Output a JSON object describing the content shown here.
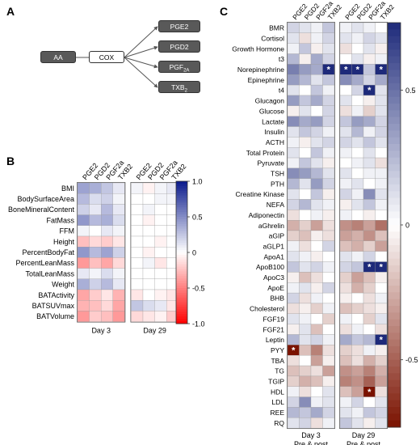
{
  "panel_a": {
    "letter": "A",
    "substrate": "AA",
    "enzyme": "COX",
    "products": [
      {
        "base": "PGE2",
        "sub": ""
      },
      {
        "base": "PGD2",
        "sub": ""
      },
      {
        "base": "PGF",
        "sub": "2A"
      },
      {
        "base": "TXB",
        "sub": "2"
      }
    ]
  },
  "panel_b": {
    "letter": "B",
    "columns": [
      "PGE2",
      "PGD2",
      "PGF2a",
      "TXB2",
      "PGE2",
      "PGD2",
      "PGF2a",
      "TXB2"
    ],
    "groups": [
      "Day 3",
      "Day 29"
    ],
    "rows": [
      "BMI",
      "BodySurfaceArea",
      "BoneMineralContent",
      "FatMass",
      "FFM",
      "Height",
      "PercentBodyFat",
      "PercentLeanMass",
      "TotalLeanMass",
      "Weight",
      "BATActivity",
      "BATSUVmax",
      "BATVolume"
    ],
    "colorbar_ticks": [
      "1.0",
      "0.5",
      "0",
      "-0.5",
      "-1.0"
    ]
  },
  "panel_c": {
    "letter": "C",
    "columns": [
      "PGE2",
      "PGD2",
      "PGF2a",
      "TXB2",
      "PGE2",
      "PGD2",
      "PGF2a",
      "TXB2"
    ],
    "groups": [
      {
        "line1": "Day 3",
        "line2": "Pre & post"
      },
      {
        "line1": "Day 29",
        "line2": "Pre & post"
      }
    ],
    "rows": [
      "BMR",
      "Cortisol",
      "Growth Hormone",
      "t3",
      "Norepinephrine",
      "Epinephrine",
      "t4",
      "Glucagon",
      "Glucose",
      "Lactate",
      "Insulin",
      "ACTH",
      "Total Protein",
      "Pyruvate",
      "TSH",
      "PTH",
      "Creatine Kinase",
      "NEFA",
      "Adiponectin",
      "aGhrelin",
      "aGIP",
      "aGLP1",
      "ApoA1",
      "ApoB100",
      "ApoC3",
      "ApoE",
      "BHB",
      "Cholesterol",
      "FGF19",
      "FGF21",
      "Leptin",
      "PYY",
      "TBA",
      "TG",
      "TGIP",
      "HDL",
      "LDL",
      "REE",
      "RQ"
    ],
    "colorbar_ticks": [
      "0.5",
      "0",
      "-0.5"
    ]
  },
  "colors": {
    "blue_max": "#0a1a8c",
    "red_max": "#ff0000",
    "c_blue_max": "#1e2a7a",
    "c_red_max": "#7a1200"
  },
  "chart_data": [
    {
      "type": "heatmap",
      "columns": [
        "PGE2",
        "PGD2",
        "PGF2a",
        "TXB2",
        "PGE2",
        "PGD2",
        "PGF2a",
        "TXB2"
      ],
      "groups": [
        "Day 3",
        "Day 29"
      ],
      "rows": [
        "BMI",
        "BodySurfaceArea",
        "BoneMineralContent",
        "FatMass",
        "FFM",
        "Height",
        "PercentBodyFat",
        "PercentLeanMass",
        "TotalLeanMass",
        "Weight",
        "BATActivity",
        "BATSUVmax",
        "BATVolume"
      ],
      "range": [
        -1,
        1
      ],
      "values": [
        [
          0.4,
          0.35,
          0.25,
          0.1,
          0.05,
          -0.05,
          0.05,
          0.1
        ],
        [
          0.3,
          0.15,
          0.2,
          0.05,
          0.0,
          0.0,
          0.05,
          0.05
        ],
        [
          0.2,
          0.1,
          0.3,
          0.1,
          0.0,
          0.05,
          0.0,
          0.0
        ],
        [
          0.45,
          0.3,
          0.35,
          0.15,
          0.0,
          -0.05,
          0.0,
          0.0
        ],
        [
          0.05,
          0.0,
          0.1,
          0.05,
          0.0,
          0.0,
          0.0,
          0.0
        ],
        [
          -0.25,
          -0.15,
          -0.2,
          -0.1,
          0.0,
          0.0,
          -0.05,
          0.0
        ],
        [
          0.45,
          0.3,
          0.4,
          0.2,
          0.0,
          -0.05,
          0.0,
          0.0
        ],
        [
          -0.4,
          -0.25,
          -0.35,
          -0.15,
          0.0,
          0.05,
          -0.1,
          0.0
        ],
        [
          0.1,
          0.05,
          0.15,
          0.05,
          0.0,
          0.0,
          0.0,
          0.0
        ],
        [
          0.35,
          0.2,
          0.3,
          0.1,
          0.0,
          0.0,
          0.0,
          0.0
        ],
        [
          -0.35,
          -0.2,
          -0.1,
          -0.3,
          -0.1,
          0.0,
          -0.05,
          -0.1
        ],
        [
          -0.3,
          -0.25,
          -0.15,
          -0.35,
          0.25,
          0.15,
          0.1,
          -0.1
        ],
        [
          -0.4,
          -0.2,
          -0.25,
          -0.4,
          -0.15,
          -0.1,
          -0.05,
          -0.2
        ]
      ]
    },
    {
      "type": "heatmap",
      "columns": [
        "PGE2",
        "PGD2",
        "PGF2a",
        "TXB2",
        "PGE2",
        "PGD2",
        "PGF2a",
        "TXB2"
      ],
      "groups": [
        "Day 3 Pre & post",
        "Day 29 Pre & post"
      ],
      "rows": [
        "BMR",
        "Cortisol",
        "Growth Hormone",
        "t3",
        "Norepinephrine",
        "Epinephrine",
        "t4",
        "Glucagon",
        "Glucose",
        "Lactate",
        "Insulin",
        "ACTH",
        "Total Protein",
        "Pyruvate",
        "TSH",
        "PTH",
        "Creatine Kinase",
        "NEFA",
        "Adiponectin",
        "aGhrelin",
        "aGIP",
        "aGLP1",
        "ApoA1",
        "ApoB100",
        "ApoC3",
        "ApoE",
        "BHB",
        "Cholesterol",
        "FGF19",
        "FGF21",
        "Leptin",
        "PYY",
        "TBA",
        "TG",
        "TGIP",
        "HDL",
        "LDL",
        "REE",
        "RQ"
      ],
      "range": [
        -0.75,
        0.75
      ],
      "values": [
        [
          0.15,
          0.1,
          0.05,
          0.2,
          0.05,
          0.1,
          0.05,
          0.0
        ],
        [
          0.1,
          -0.1,
          0.05,
          0.15,
          0.1,
          0.05,
          0.15,
          0.1
        ],
        [
          0.05,
          0.2,
          -0.05,
          0.1,
          -0.1,
          0.0,
          0.1,
          -0.05
        ],
        [
          0.25,
          -0.05,
          0.3,
          0.15,
          0.0,
          0.1,
          -0.05,
          0.05
        ],
        [
          0.45,
          0.35,
          0.3,
          0.75,
          0.75,
          0.75,
          0.2,
          0.75
        ],
        [
          0.35,
          0.25,
          0.1,
          0.2,
          0.4,
          0.3,
          0.15,
          0.3
        ],
        [
          0.1,
          0.0,
          0.2,
          0.05,
          0.0,
          0.15,
          0.75,
          0.1
        ],
        [
          0.35,
          0.2,
          0.3,
          0.15,
          0.1,
          0.0,
          -0.05,
          0.1
        ],
        [
          -0.05,
          0.1,
          0.0,
          0.15,
          -0.1,
          0.05,
          -0.15,
          0.1
        ],
        [
          0.4,
          0.3,
          0.35,
          0.15,
          0.2,
          0.35,
          0.3,
          0.15
        ],
        [
          0.1,
          0.2,
          0.15,
          0.05,
          0.1,
          0.25,
          0.05,
          0.15
        ],
        [
          0.05,
          -0.05,
          0.1,
          0.15,
          0.15,
          0.1,
          0.2,
          0.1
        ],
        [
          0.1,
          0.0,
          0.2,
          0.05,
          0.05,
          0.0,
          0.1,
          0.0
        ],
        [
          0.05,
          0.2,
          0.1,
          -0.05,
          0.0,
          0.05,
          0.1,
          -0.1
        ],
        [
          0.4,
          0.35,
          0.25,
          0.1,
          0.1,
          0.0,
          0.05,
          0.05
        ],
        [
          0.25,
          0.1,
          0.35,
          0.15,
          0.05,
          0.1,
          0.0,
          0.05
        ],
        [
          0.1,
          0.0,
          0.2,
          -0.05,
          0.15,
          0.05,
          0.4,
          0.1
        ],
        [
          0.15,
          0.25,
          0.1,
          0.05,
          -0.05,
          0.1,
          0.2,
          0.05
        ],
        [
          -0.1,
          0.0,
          0.05,
          -0.05,
          0.05,
          0.0,
          -0.05,
          0.0
        ],
        [
          -0.25,
          -0.15,
          -0.3,
          -0.1,
          -0.35,
          -0.4,
          -0.3,
          -0.45
        ],
        [
          -0.15,
          -0.2,
          -0.05,
          -0.1,
          -0.3,
          -0.25,
          -0.35,
          -0.2
        ],
        [
          0.05,
          -0.1,
          0.0,
          0.15,
          -0.2,
          -0.25,
          -0.15,
          -0.3
        ],
        [
          0.1,
          0.05,
          -0.05,
          0.0,
          0.1,
          0.05,
          0.15,
          0.0
        ],
        [
          0.2,
          0.1,
          0.15,
          0.05,
          0.15,
          0.2,
          0.75,
          0.75
        ],
        [
          -0.05,
          -0.2,
          -0.1,
          0.0,
          -0.15,
          -0.3,
          -0.2,
          -0.05
        ],
        [
          0.05,
          0.1,
          -0.05,
          0.15,
          -0.1,
          -0.25,
          -0.15,
          0.0
        ],
        [
          0.15,
          -0.1,
          0.05,
          0.0,
          -0.05,
          0.0,
          -0.1,
          0.05
        ],
        [
          -0.1,
          -0.05,
          -0.15,
          0.05,
          -0.2,
          -0.15,
          -0.1,
          -0.05
        ],
        [
          0.1,
          0.05,
          0.0,
          -0.15,
          0.05,
          0.0,
          -0.15,
          0.1
        ],
        [
          -0.05,
          0.1,
          -0.2,
          0.0,
          -0.1,
          0.05,
          0.0,
          -0.1
        ],
        [
          0.25,
          0.1,
          0.15,
          0.05,
          0.3,
          0.2,
          0.25,
          0.75
        ],
        [
          -0.75,
          -0.2,
          -0.4,
          -0.1,
          -0.15,
          -0.1,
          0.05,
          -0.05
        ],
        [
          -0.1,
          0.0,
          -0.3,
          -0.05,
          -0.2,
          -0.1,
          -0.25,
          -0.15
        ],
        [
          -0.2,
          -0.15,
          -0.1,
          -0.3,
          -0.35,
          -0.3,
          -0.4,
          -0.25
        ],
        [
          -0.15,
          -0.25,
          -0.2,
          -0.05,
          -0.4,
          -0.35,
          -0.5,
          -0.3
        ],
        [
          0.05,
          -0.1,
          0.0,
          0.1,
          -0.2,
          -0.3,
          -0.75,
          -0.1
        ],
        [
          0.15,
          0.4,
          0.05,
          0.1,
          0.05,
          0.15,
          0.0,
          0.1
        ],
        [
          0.25,
          0.2,
          0.3,
          0.15,
          0.1,
          0.05,
          0.2,
          0.15
        ],
        [
          0.1,
          0.15,
          -0.1,
          0.05,
          0.2,
          0.1,
          -0.05,
          0.1
        ]
      ],
      "significant": [
        {
          "row": "Norepinephrine",
          "cols": [
            3,
            4,
            5,
            7
          ]
        },
        {
          "row": "t4",
          "cols": [
            6
          ]
        },
        {
          "row": "ApoB100",
          "cols": [
            6,
            7
          ]
        },
        {
          "row": "Leptin",
          "cols": [
            7
          ]
        },
        {
          "row": "PYY",
          "cols": [
            0
          ]
        },
        {
          "row": "HDL",
          "cols": [
            6
          ]
        }
      ],
      "significance_marker": "*"
    }
  ]
}
